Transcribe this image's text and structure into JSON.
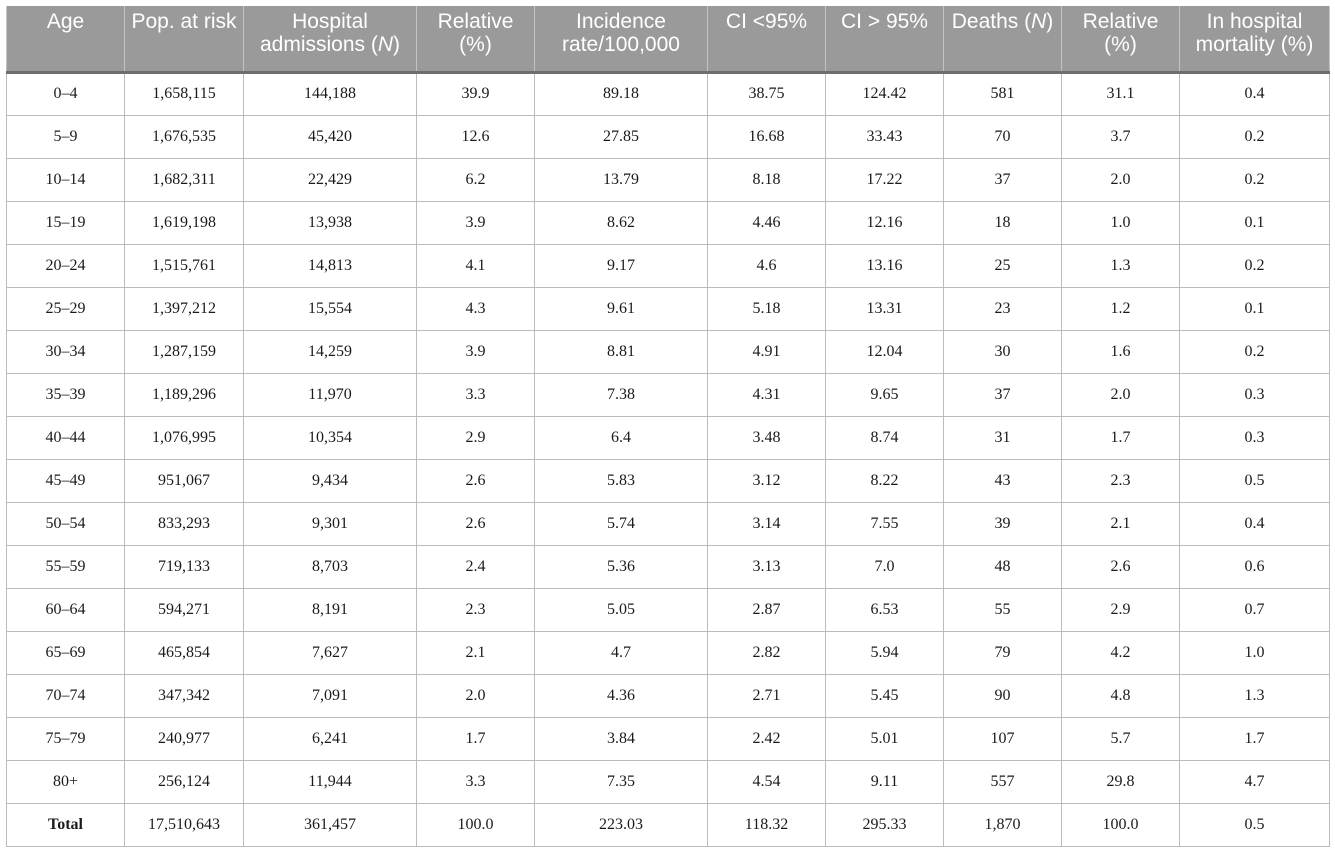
{
  "headers": [
    "Age",
    "Pop. at risk",
    "Hospital admissions (N)",
    "Relative (%)",
    "Incidence rate/100,000",
    "CI <95%",
    "CI > 95%",
    "Deaths (N)",
    "Relative (%)",
    "In hospital mortality (%)"
  ],
  "rows": [
    [
      "0–4",
      "1,658,115",
      "144,188",
      "39.9",
      "89.18",
      "38.75",
      "124.42",
      "581",
      "31.1",
      "0.4"
    ],
    [
      "5–9",
      "1,676,535",
      "45,420",
      "12.6",
      "27.85",
      "16.68",
      "33.43",
      "70",
      "3.7",
      "0.2"
    ],
    [
      "10–14",
      "1,682,311",
      "22,429",
      "6.2",
      "13.79",
      "8.18",
      "17.22",
      "37",
      "2.0",
      "0.2"
    ],
    [
      "15–19",
      "1,619,198",
      "13,938",
      "3.9",
      "8.62",
      "4.46",
      "12.16",
      "18",
      "1.0",
      "0.1"
    ],
    [
      "20–24",
      "1,515,761",
      "14,813",
      "4.1",
      "9.17",
      "4.6",
      "13.16",
      "25",
      "1.3",
      "0.2"
    ],
    [
      "25–29",
      "1,397,212",
      "15,554",
      "4.3",
      "9.61",
      "5.18",
      "13.31",
      "23",
      "1.2",
      "0.1"
    ],
    [
      "30–34",
      "1,287,159",
      "14,259",
      "3.9",
      "8.81",
      "4.91",
      "12.04",
      "30",
      "1.6",
      "0.2"
    ],
    [
      "35–39",
      "1,189,296",
      "11,970",
      "3.3",
      "7.38",
      "4.31",
      "9.65",
      "37",
      "2.0",
      "0.3"
    ],
    [
      "40–44",
      "1,076,995",
      "10,354",
      "2.9",
      "6.4",
      "3.48",
      "8.74",
      "31",
      "1.7",
      "0.3"
    ],
    [
      "45–49",
      "951,067",
      "9,434",
      "2.6",
      "5.83",
      "3.12",
      "8.22",
      "43",
      "2.3",
      "0.5"
    ],
    [
      "50–54",
      "833,293",
      "9,301",
      "2.6",
      "5.74",
      "3.14",
      "7.55",
      "39",
      "2.1",
      "0.4"
    ],
    [
      "55–59",
      "719,133",
      "8,703",
      "2.4",
      "5.36",
      "3.13",
      "7.0",
      "48",
      "2.6",
      "0.6"
    ],
    [
      "60–64",
      "594,271",
      "8,191",
      "2.3",
      "5.05",
      "2.87",
      "6.53",
      "55",
      "2.9",
      "0.7"
    ],
    [
      "65–69",
      "465,854",
      "7,627",
      "2.1",
      "4.7",
      "2.82",
      "5.94",
      "79",
      "4.2",
      "1.0"
    ],
    [
      "70–74",
      "347,342",
      "7,091",
      "2.0",
      "4.36",
      "2.71",
      "5.45",
      "90",
      "4.8",
      "1.3"
    ],
    [
      "75–79",
      "240,977",
      "6,241",
      "1.7",
      "3.84",
      "2.42",
      "5.01",
      "107",
      "5.7",
      "1.7"
    ],
    [
      "80+",
      "256,124",
      "11,944",
      "3.3",
      "7.35",
      "4.54",
      "9.11",
      "557",
      "29.8",
      "4.7"
    ]
  ],
  "total": [
    "Total",
    "17,510,643",
    "361,457",
    "100.0",
    "223.03",
    "118.32",
    "295.33",
    "1,870",
    "100.0",
    "0.5"
  ],
  "colors": {
    "header_bg": "#9a9a9a",
    "header_text": "#ffffff",
    "grid": "#bcbcbc"
  }
}
